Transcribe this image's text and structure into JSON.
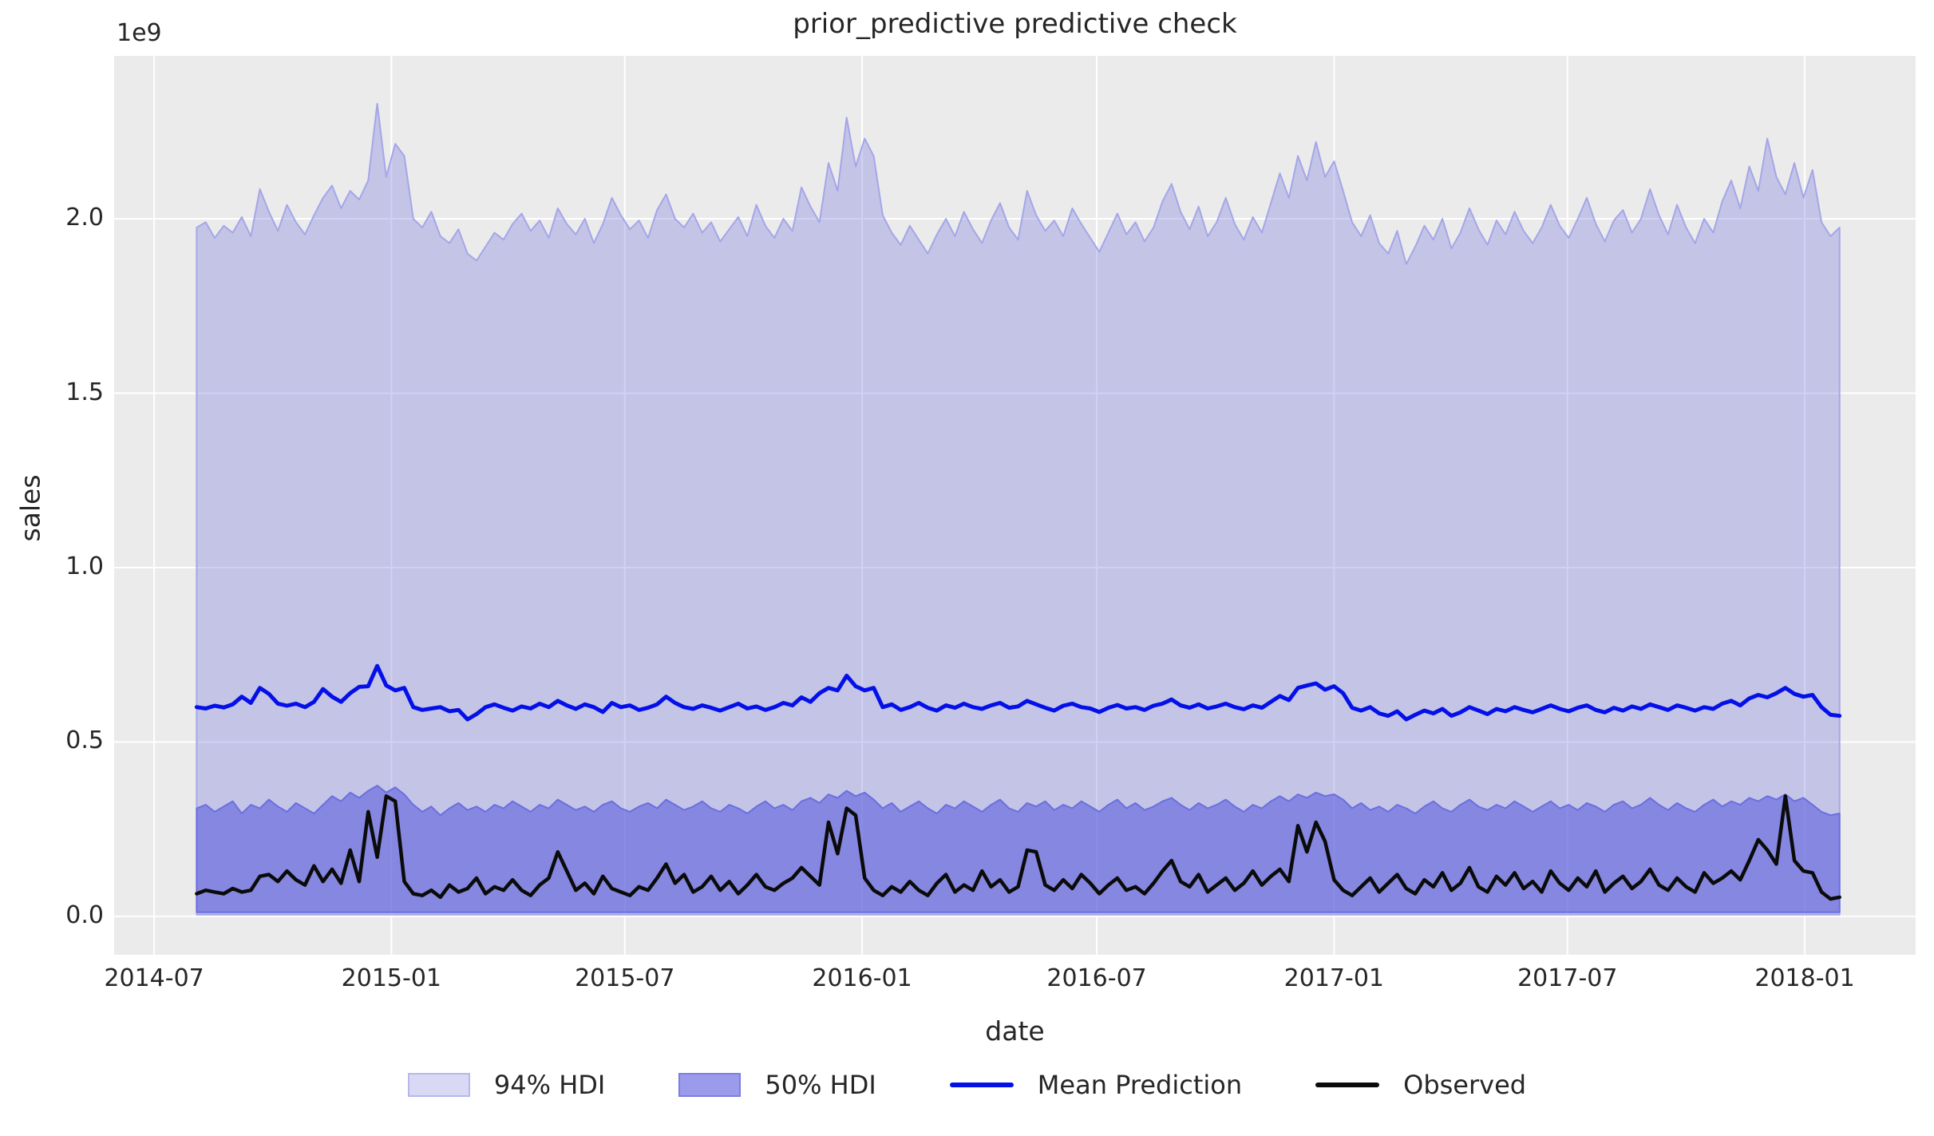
{
  "chart_data": {
    "type": "line",
    "title": "prior_predictive predictive check",
    "xlabel": "date",
    "ylabel": "sales",
    "y_offset_text": "1e9",
    "y_unit_multiplier": 1000000000,
    "plot_bg": "#ebebeb",
    "grid_color": "#ffffff",
    "text_color": "#262626",
    "grid_on": true,
    "legend_position": "bottom-center",
    "x_axis": {
      "range": [
        "2014-05-31",
        "2018-03-28"
      ],
      "tick_dates": [
        "2014-07-01",
        "2015-01-01",
        "2015-07-01",
        "2016-01-01",
        "2016-07-01",
        "2017-01-01",
        "2017-07-01",
        "2018-01-01"
      ],
      "tick_labels": [
        "2014-07",
        "2015-01",
        "2015-07",
        "2016-01",
        "2016-07",
        "2017-01",
        "2017-07",
        "2018-01"
      ]
    },
    "y_axis": {
      "range": [
        -0.11,
        2.467
      ],
      "ticks": [
        0.0,
        0.5,
        1.0,
        1.5,
        2.0
      ],
      "tick_labels": [
        "0.0",
        "0.5",
        "1.0",
        "1.5",
        "2.0"
      ]
    },
    "x_start": "2014-08-03",
    "x_step_days": 7,
    "n_points": 183,
    "series": [
      {
        "name": "94% HDI",
        "type": "band",
        "fill": "rgba(133,135,226,0.38)",
        "edge": "#a4a6e8",
        "edge_width": 2,
        "legend_fill": "#d9d9f5",
        "legend_edge": "#b7b7ee",
        "lower_constant": 0.005,
        "upper": [
          1.975,
          1.99,
          1.945,
          1.98,
          1.96,
          2.005,
          1.95,
          2.085,
          2.02,
          1.965,
          2.04,
          1.99,
          1.955,
          2.01,
          2.06,
          2.095,
          2.03,
          2.08,
          2.055,
          2.11,
          2.33,
          2.12,
          2.215,
          2.18,
          2.0,
          1.975,
          2.02,
          1.95,
          1.93,
          1.97,
          1.9,
          1.88,
          1.92,
          1.96,
          1.94,
          1.985,
          2.015,
          1.965,
          1.995,
          1.945,
          2.03,
          1.985,
          1.955,
          2.0,
          1.93,
          1.985,
          2.06,
          2.01,
          1.97,
          1.995,
          1.945,
          2.025,
          2.07,
          2.0,
          1.975,
          2.015,
          1.96,
          1.99,
          1.935,
          1.97,
          2.005,
          1.95,
          2.04,
          1.98,
          1.945,
          2.0,
          1.965,
          2.09,
          2.035,
          1.99,
          2.16,
          2.08,
          2.29,
          2.15,
          2.23,
          2.18,
          2.01,
          1.96,
          1.925,
          1.98,
          1.94,
          1.9,
          1.955,
          2.0,
          1.95,
          2.02,
          1.97,
          1.93,
          1.995,
          2.045,
          1.975,
          1.94,
          2.08,
          2.01,
          1.965,
          1.995,
          1.95,
          2.03,
          1.985,
          1.945,
          1.905,
          1.96,
          2.015,
          1.955,
          1.99,
          1.935,
          1.975,
          2.05,
          2.1,
          2.02,
          1.97,
          2.035,
          1.95,
          1.99,
          2.06,
          1.985,
          1.94,
          2.005,
          1.96,
          2.045,
          2.13,
          2.06,
          2.18,
          2.11,
          2.22,
          2.12,
          2.165,
          2.08,
          1.99,
          1.95,
          2.01,
          1.93,
          1.9,
          1.965,
          1.87,
          1.92,
          1.98,
          1.94,
          2.0,
          1.915,
          1.96,
          2.03,
          1.97,
          1.925,
          1.995,
          1.955,
          2.02,
          1.965,
          1.93,
          1.975,
          2.04,
          1.98,
          1.945,
          2.0,
          2.06,
          1.985,
          1.935,
          1.995,
          2.025,
          1.96,
          2.0,
          2.085,
          2.01,
          1.955,
          2.04,
          1.975,
          1.93,
          2.0,
          1.96,
          2.05,
          2.11,
          2.03,
          2.15,
          2.08,
          2.23,
          2.12,
          2.07,
          2.16,
          2.06,
          2.14,
          1.99,
          1.95,
          1.975
        ]
      },
      {
        "name": "50% HDI",
        "type": "band",
        "fill": "rgba(88,92,218,0.58)",
        "edge": "#6b6fdf",
        "edge_width": 2,
        "legend_fill": "#9b9beb",
        "legend_edge": "#7c7ce6",
        "lower_constant": 0.012,
        "upper": [
          0.31,
          0.32,
          0.3,
          0.315,
          0.33,
          0.295,
          0.32,
          0.31,
          0.335,
          0.315,
          0.3,
          0.325,
          0.31,
          0.295,
          0.32,
          0.345,
          0.33,
          0.355,
          0.34,
          0.36,
          0.375,
          0.355,
          0.37,
          0.35,
          0.32,
          0.3,
          0.315,
          0.29,
          0.31,
          0.325,
          0.305,
          0.315,
          0.3,
          0.32,
          0.31,
          0.33,
          0.315,
          0.3,
          0.32,
          0.31,
          0.335,
          0.32,
          0.305,
          0.315,
          0.3,
          0.32,
          0.33,
          0.31,
          0.3,
          0.315,
          0.325,
          0.31,
          0.335,
          0.32,
          0.305,
          0.315,
          0.33,
          0.31,
          0.3,
          0.32,
          0.31,
          0.295,
          0.315,
          0.33,
          0.31,
          0.32,
          0.305,
          0.33,
          0.34,
          0.325,
          0.35,
          0.34,
          0.36,
          0.345,
          0.355,
          0.335,
          0.31,
          0.325,
          0.3,
          0.315,
          0.33,
          0.31,
          0.295,
          0.32,
          0.31,
          0.33,
          0.315,
          0.3,
          0.32,
          0.335,
          0.31,
          0.3,
          0.325,
          0.315,
          0.33,
          0.305,
          0.32,
          0.31,
          0.33,
          0.315,
          0.3,
          0.32,
          0.335,
          0.31,
          0.325,
          0.305,
          0.315,
          0.33,
          0.34,
          0.32,
          0.305,
          0.325,
          0.31,
          0.32,
          0.335,
          0.315,
          0.3,
          0.32,
          0.31,
          0.33,
          0.345,
          0.33,
          0.35,
          0.34,
          0.355,
          0.345,
          0.35,
          0.335,
          0.31,
          0.325,
          0.305,
          0.315,
          0.3,
          0.32,
          0.31,
          0.295,
          0.315,
          0.33,
          0.31,
          0.3,
          0.32,
          0.335,
          0.315,
          0.305,
          0.32,
          0.31,
          0.33,
          0.315,
          0.3,
          0.315,
          0.33,
          0.31,
          0.32,
          0.305,
          0.325,
          0.315,
          0.3,
          0.32,
          0.33,
          0.31,
          0.32,
          0.34,
          0.32,
          0.305,
          0.325,
          0.31,
          0.3,
          0.32,
          0.335,
          0.315,
          0.33,
          0.32,
          0.34,
          0.33,
          0.345,
          0.335,
          0.35,
          0.33,
          0.34,
          0.32,
          0.3,
          0.29,
          0.295
        ]
      },
      {
        "name": "Mean Prediction",
        "type": "line",
        "color": "#0410e8",
        "width": 5,
        "values": [
          0.6,
          0.596,
          0.604,
          0.599,
          0.608,
          0.63,
          0.612,
          0.655,
          0.638,
          0.61,
          0.604,
          0.61,
          0.6,
          0.615,
          0.652,
          0.63,
          0.615,
          0.64,
          0.658,
          0.66,
          0.718,
          0.662,
          0.648,
          0.655,
          0.6,
          0.592,
          0.596,
          0.6,
          0.588,
          0.592,
          0.565,
          0.58,
          0.6,
          0.608,
          0.598,
          0.59,
          0.602,
          0.596,
          0.61,
          0.6,
          0.618,
          0.605,
          0.595,
          0.608,
          0.6,
          0.586,
          0.612,
          0.6,
          0.605,
          0.592,
          0.598,
          0.608,
          0.63,
          0.612,
          0.6,
          0.595,
          0.605,
          0.598,
          0.59,
          0.6,
          0.61,
          0.596,
          0.602,
          0.592,
          0.6,
          0.612,
          0.605,
          0.628,
          0.615,
          0.64,
          0.655,
          0.648,
          0.69,
          0.66,
          0.648,
          0.655,
          0.6,
          0.608,
          0.592,
          0.6,
          0.612,
          0.598,
          0.59,
          0.605,
          0.598,
          0.61,
          0.6,
          0.595,
          0.605,
          0.612,
          0.598,
          0.602,
          0.618,
          0.608,
          0.598,
          0.59,
          0.604,
          0.61,
          0.6,
          0.596,
          0.586,
          0.598,
          0.606,
          0.596,
          0.6,
          0.592,
          0.604,
          0.61,
          0.622,
          0.605,
          0.598,
          0.608,
          0.596,
          0.602,
          0.61,
          0.6,
          0.594,
          0.605,
          0.598,
          0.615,
          0.632,
          0.62,
          0.655,
          0.662,
          0.668,
          0.65,
          0.66,
          0.64,
          0.598,
          0.59,
          0.6,
          0.582,
          0.575,
          0.588,
          0.565,
          0.578,
          0.59,
          0.582,
          0.595,
          0.575,
          0.585,
          0.6,
          0.59,
          0.58,
          0.595,
          0.588,
          0.6,
          0.592,
          0.585,
          0.595,
          0.605,
          0.595,
          0.588,
          0.598,
          0.605,
          0.592,
          0.585,
          0.598,
          0.59,
          0.602,
          0.595,
          0.608,
          0.6,
          0.592,
          0.605,
          0.598,
          0.59,
          0.6,
          0.595,
          0.61,
          0.618,
          0.605,
          0.625,
          0.635,
          0.628,
          0.64,
          0.655,
          0.638,
          0.63,
          0.635,
          0.6,
          0.578,
          0.575
        ]
      },
      {
        "name": "Observed",
        "type": "line",
        "color": "#0b0b0b",
        "width": 4.5,
        "values": [
          0.065,
          0.075,
          0.07,
          0.065,
          0.08,
          0.07,
          0.075,
          0.115,
          0.12,
          0.1,
          0.13,
          0.105,
          0.09,
          0.145,
          0.1,
          0.135,
          0.095,
          0.19,
          0.1,
          0.3,
          0.17,
          0.345,
          0.33,
          0.1,
          0.065,
          0.06,
          0.075,
          0.055,
          0.09,
          0.07,
          0.08,
          0.11,
          0.065,
          0.085,
          0.075,
          0.105,
          0.075,
          0.06,
          0.09,
          0.11,
          0.185,
          0.13,
          0.075,
          0.095,
          0.065,
          0.115,
          0.08,
          0.07,
          0.06,
          0.085,
          0.075,
          0.11,
          0.15,
          0.095,
          0.12,
          0.07,
          0.085,
          0.115,
          0.075,
          0.1,
          0.065,
          0.09,
          0.12,
          0.085,
          0.075,
          0.095,
          0.11,
          0.14,
          0.115,
          0.09,
          0.27,
          0.18,
          0.31,
          0.29,
          0.11,
          0.075,
          0.06,
          0.085,
          0.07,
          0.1,
          0.075,
          0.06,
          0.095,
          0.12,
          0.07,
          0.09,
          0.075,
          0.13,
          0.085,
          0.105,
          0.07,
          0.085,
          0.19,
          0.185,
          0.09,
          0.075,
          0.105,
          0.08,
          0.12,
          0.095,
          0.065,
          0.09,
          0.11,
          0.075,
          0.085,
          0.065,
          0.095,
          0.13,
          0.16,
          0.1,
          0.085,
          0.12,
          0.07,
          0.09,
          0.11,
          0.075,
          0.095,
          0.13,
          0.09,
          0.115,
          0.135,
          0.1,
          0.26,
          0.185,
          0.27,
          0.215,
          0.105,
          0.075,
          0.06,
          0.085,
          0.11,
          0.07,
          0.095,
          0.12,
          0.08,
          0.065,
          0.105,
          0.085,
          0.125,
          0.075,
          0.095,
          0.14,
          0.085,
          0.07,
          0.115,
          0.09,
          0.125,
          0.08,
          0.1,
          0.07,
          0.13,
          0.095,
          0.075,
          0.11,
          0.085,
          0.13,
          0.07,
          0.095,
          0.115,
          0.08,
          0.1,
          0.135,
          0.09,
          0.075,
          0.11,
          0.085,
          0.07,
          0.125,
          0.095,
          0.11,
          0.13,
          0.105,
          0.16,
          0.22,
          0.19,
          0.15,
          0.345,
          0.16,
          0.13,
          0.125,
          0.07,
          0.05,
          0.055
        ]
      }
    ]
  }
}
